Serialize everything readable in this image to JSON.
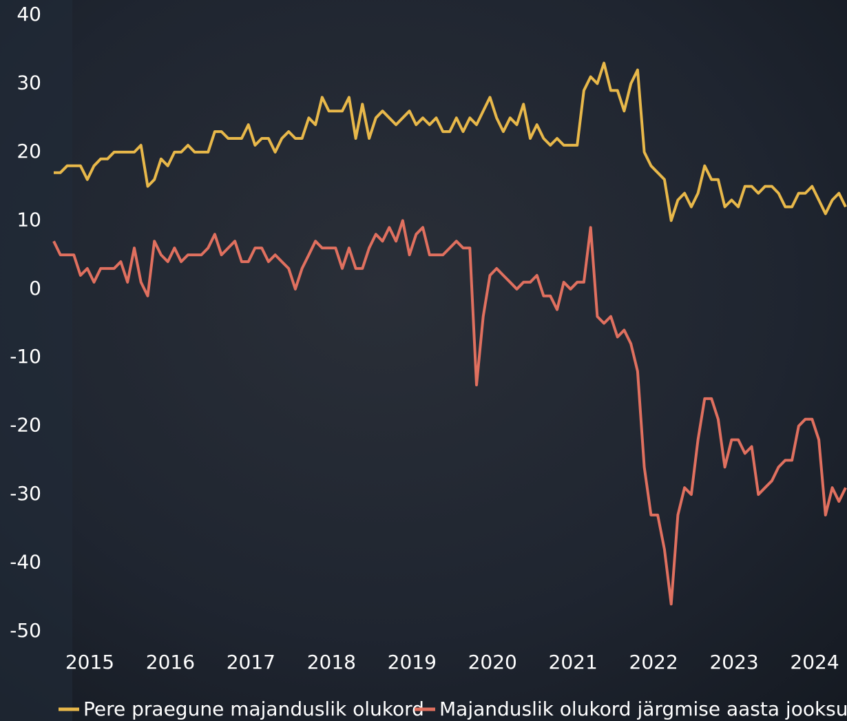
{
  "chart_data": {
    "type": "line",
    "x": [
      2014.5,
      2014.583,
      2014.667,
      2014.75,
      2014.833,
      2014.917,
      2015,
      2015.083,
      2015.167,
      2015.25,
      2015.333,
      2015.417,
      2015.5,
      2015.583,
      2015.667,
      2015.75,
      2015.833,
      2015.917,
      2016,
      2016.083,
      2016.167,
      2016.25,
      2016.333,
      2016.417,
      2016.5,
      2016.583,
      2016.667,
      2016.75,
      2016.833,
      2016.917,
      2017,
      2017.083,
      2017.167,
      2017.25,
      2017.333,
      2017.417,
      2017.5,
      2017.583,
      2017.667,
      2017.75,
      2017.833,
      2017.917,
      2018,
      2018.083,
      2018.167,
      2018.25,
      2018.333,
      2018.417,
      2018.5,
      2018.583,
      2018.667,
      2018.75,
      2018.833,
      2018.917,
      2019,
      2019.083,
      2019.167,
      2019.25,
      2019.333,
      2019.417,
      2019.5,
      2019.583,
      2019.667,
      2019.75,
      2019.833,
      2019.917,
      2020,
      2020.083,
      2020.167,
      2020.25,
      2020.333,
      2020.417,
      2020.5,
      2020.583,
      2020.667,
      2020.75,
      2020.833,
      2020.917,
      2021,
      2021.083,
      2021.167,
      2021.25,
      2021.333,
      2021.417,
      2021.5,
      2021.583,
      2021.667,
      2021.75,
      2021.833,
      2021.917,
      2022,
      2022.083,
      2022.167,
      2022.25,
      2022.333,
      2022.417,
      2022.5,
      2022.583,
      2022.667,
      2022.75,
      2022.833,
      2022.917,
      2023,
      2023.083,
      2023.167,
      2023.25,
      2023.333,
      2023.417,
      2023.5,
      2023.583,
      2023.667,
      2023.75,
      2023.833,
      2023.917,
      2024,
      2024.083,
      2024.167,
      2024.25,
      2024.333
    ],
    "series": [
      {
        "name": "Pere praegune majanduslik olukord",
        "color": "#e8b84a",
        "values": [
          17,
          17,
          18,
          18,
          18,
          16,
          18,
          19,
          19,
          20,
          20,
          20,
          20,
          21,
          15,
          16,
          19,
          18,
          20,
          20,
          21,
          20,
          20,
          20,
          23,
          23,
          22,
          22,
          22,
          24,
          21,
          22,
          22,
          20,
          22,
          23,
          22,
          22,
          25,
          24,
          28,
          26,
          26,
          26,
          28,
          22,
          27,
          22,
          25,
          26,
          25,
          24,
          25,
          26,
          24,
          25,
          24,
          25,
          23,
          23,
          25,
          23,
          25,
          24,
          26,
          28,
          25,
          23,
          25,
          24,
          27,
          22,
          24,
          22,
          21,
          22,
          21,
          21,
          21,
          29,
          31,
          30,
          33,
          29,
          29,
          26,
          30,
          32,
          20,
          18,
          17,
          16,
          10,
          13,
          14,
          12,
          14,
          18,
          16,
          16,
          12,
          13,
          12,
          15,
          15,
          14,
          15,
          15,
          14,
          12,
          12,
          14,
          14,
          15,
          13,
          11,
          13,
          14,
          12
        ]
      },
      {
        "name": "Majanduslik olukord järgmise aasta jooksul",
        "color": "#e0705f",
        "values": [
          7,
          5,
          5,
          5,
          2,
          3,
          1,
          3,
          3,
          3,
          4,
          1,
          6,
          1,
          -1,
          7,
          5,
          4,
          6,
          4,
          5,
          5,
          5,
          6,
          8,
          5,
          6,
          7,
          4,
          4,
          6,
          6,
          4,
          5,
          4,
          3,
          0,
          3,
          5,
          7,
          6,
          6,
          6,
          3,
          6,
          3,
          3,
          6,
          8,
          7,
          9,
          7,
          10,
          5,
          8,
          9,
          5,
          5,
          5,
          6,
          7,
          6,
          6,
          -14,
          -4,
          2,
          3,
          2,
          1,
          0,
          1,
          1,
          2,
          -1,
          -1,
          -3,
          1,
          0,
          1,
          1,
          9,
          -4,
          -5,
          -4,
          -7,
          -6,
          -8,
          -12,
          -26,
          -33,
          -33,
          -38,
          -46,
          -33,
          -29,
          -30,
          -22,
          -16,
          -16,
          -19,
          -26,
          -22,
          -22,
          -24,
          -23,
          -30,
          -29,
          -28,
          -26,
          -25,
          -25,
          -20,
          -19,
          -19,
          -22,
          -33,
          -29,
          -31,
          -29
        ]
      }
    ],
    "xlim": [
      2014.5,
      2024.333
    ],
    "xticks": [
      2015,
      2016,
      2017,
      2018,
      2019,
      2020,
      2021,
      2022,
      2023,
      2024
    ],
    "ylim": [
      -50,
      40
    ],
    "yticks": [
      -50,
      -40,
      -30,
      -20,
      -10,
      0,
      10,
      20,
      30,
      40
    ],
    "legend": "bottom",
    "grid": false
  }
}
